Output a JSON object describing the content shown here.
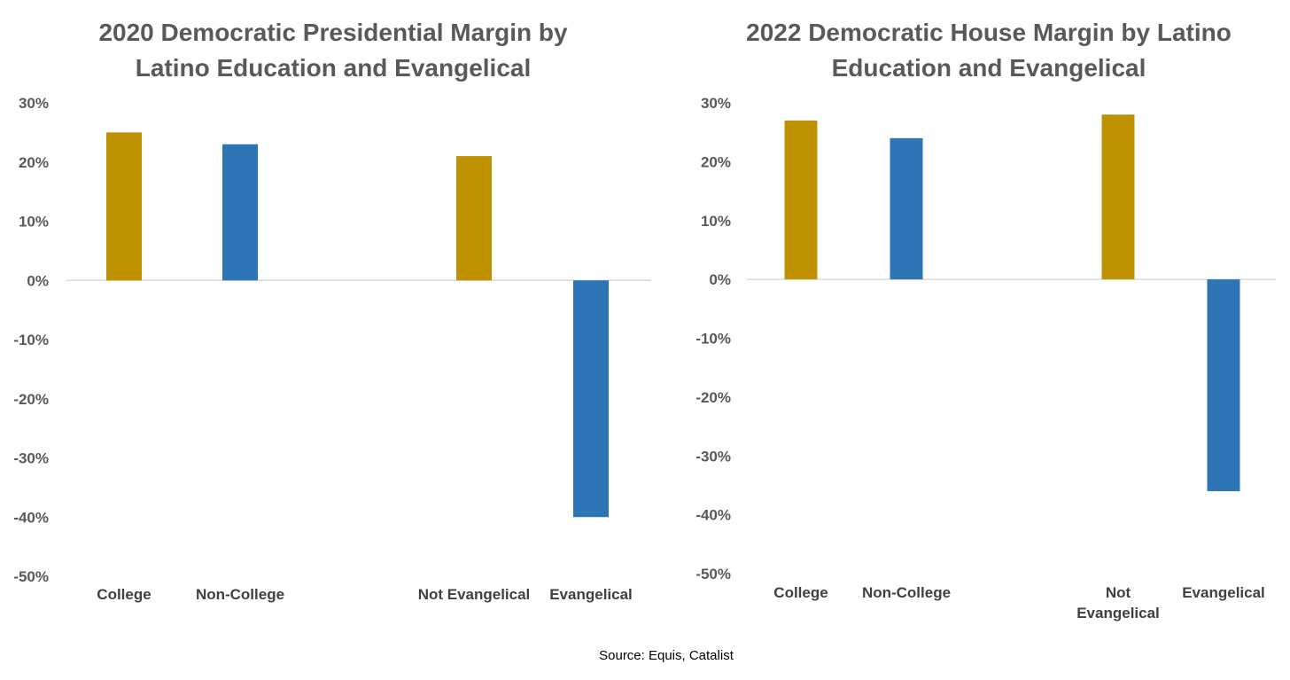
{
  "colors": {
    "gold": "#bf9000",
    "blue": "#2e75b6",
    "baseline": "#d9d9d9",
    "text": "#595959"
  },
  "footer": {
    "source": "Source: Equis, Catalist"
  },
  "chart_data": [
    {
      "type": "bar",
      "title": "2020 Democratic Presidential Margin by Latino Education and Evangelical",
      "title_lines": [
        "2020 Democratic Presidential Margin by",
        "Latino Education and Evangelical"
      ],
      "categories": [
        "College",
        "Non-College",
        "Not Evangelical",
        "Evangelical"
      ],
      "category_lines": [
        [
          "College"
        ],
        [
          "Non-College"
        ],
        [
          "Not Evangelical"
        ],
        [
          "Evangelical"
        ]
      ],
      "values": [
        25,
        23,
        21,
        -40
      ],
      "bar_colors": [
        "gold",
        "blue",
        "gold",
        "blue"
      ],
      "yticks": [
        "30%",
        "20%",
        "10%",
        "0%",
        "-10%",
        "-20%",
        "-30%",
        "-40%",
        "-50%"
      ],
      "ylim": [
        -50,
        30
      ],
      "grid": false
    },
    {
      "type": "bar",
      "title": "2022 Democratic House Margin by Latino Education and Evangelical",
      "title_lines": [
        "2022 Democratic House Margin by Latino",
        "Education and Evangelical"
      ],
      "categories": [
        "College",
        "Non-College",
        "Not Evangelical",
        "Evangelical"
      ],
      "category_lines": [
        [
          "College"
        ],
        [
          "Non-College"
        ],
        [
          "Not",
          "Evangelical"
        ],
        [
          "Evangelical"
        ]
      ],
      "values": [
        27,
        24,
        28,
        -36
      ],
      "bar_colors": [
        "gold",
        "blue",
        "gold",
        "blue"
      ],
      "yticks": [
        "30%",
        "20%",
        "10%",
        "0%",
        "-10%",
        "-20%",
        "-30%",
        "-40%",
        "-50%"
      ],
      "ylim": [
        -50,
        30
      ],
      "grid": false
    }
  ]
}
